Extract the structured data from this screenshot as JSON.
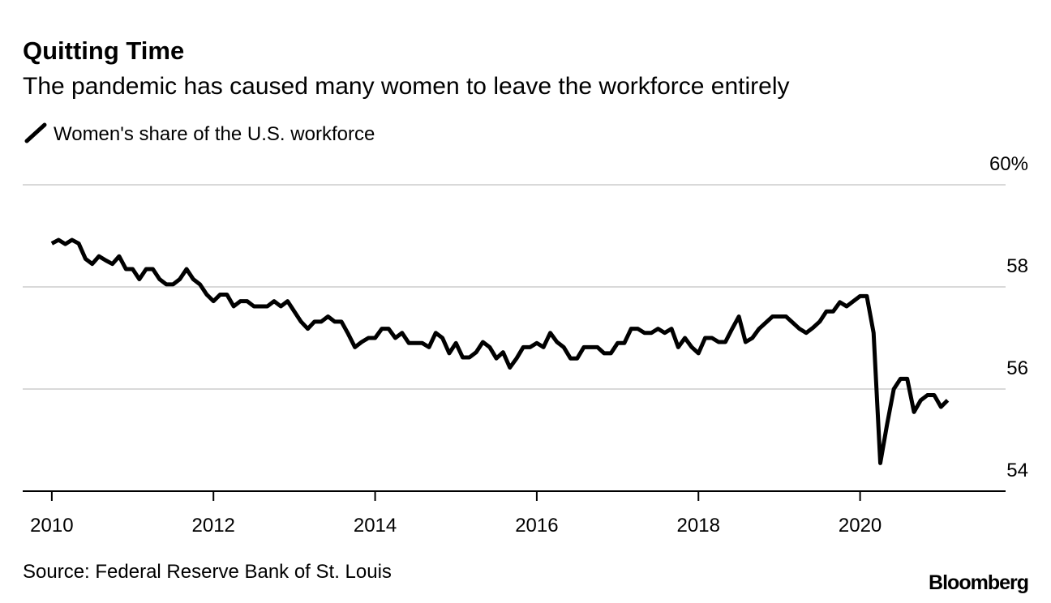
{
  "chart_data": {
    "type": "line",
    "title": "Quitting Time",
    "subtitle": "The pandemic has caused many women to leave the workforce entirely",
    "source": "Source: Federal Reserve Bank of St. Louis",
    "brand": "Bloomberg",
    "x": [
      2010,
      2010.083,
      2010.167,
      2010.25,
      2010.333,
      2010.417,
      2010.5,
      2010.583,
      2010.667,
      2010.75,
      2010.833,
      2010.917,
      2011,
      2011.083,
      2011.167,
      2011.25,
      2011.333,
      2011.417,
      2011.5,
      2011.583,
      2011.667,
      2011.75,
      2011.833,
      2011.917,
      2012,
      2012.083,
      2012.167,
      2012.25,
      2012.333,
      2012.417,
      2012.5,
      2012.583,
      2012.667,
      2012.75,
      2012.833,
      2012.917,
      2013,
      2013.083,
      2013.167,
      2013.25,
      2013.333,
      2013.417,
      2013.5,
      2013.583,
      2013.667,
      2013.75,
      2013.833,
      2013.917,
      2014,
      2014.083,
      2014.167,
      2014.25,
      2014.333,
      2014.417,
      2014.5,
      2014.583,
      2014.667,
      2014.75,
      2014.833,
      2014.917,
      2015,
      2015.083,
      2015.167,
      2015.25,
      2015.333,
      2015.417,
      2015.5,
      2015.583,
      2015.667,
      2015.75,
      2015.833,
      2015.917,
      2016,
      2016.083,
      2016.167,
      2016.25,
      2016.333,
      2016.417,
      2016.5,
      2016.583,
      2016.667,
      2016.75,
      2016.833,
      2016.917,
      2017,
      2017.083,
      2017.167,
      2017.25,
      2017.333,
      2017.417,
      2017.5,
      2017.583,
      2017.667,
      2017.75,
      2017.833,
      2017.917,
      2018,
      2018.083,
      2018.167,
      2018.25,
      2018.333,
      2018.417,
      2018.5,
      2018.583,
      2018.667,
      2018.75,
      2018.833,
      2018.917,
      2019,
      2019.083,
      2019.167,
      2019.25,
      2019.333,
      2019.417,
      2019.5,
      2019.583,
      2019.667,
      2019.75,
      2019.833,
      2019.917,
      2020,
      2020.083,
      2020.167,
      2020.25,
      2020.333,
      2020.417,
      2020.5,
      2020.583,
      2020.667,
      2020.75,
      2020.833,
      2020.917,
      2021,
      2021.083
    ],
    "series": [
      {
        "name": "Women's share of the U.S. workforce",
        "color": "#000000",
        "values": [
          58.85,
          58.92,
          58.84,
          58.92,
          58.85,
          58.55,
          58.45,
          58.6,
          58.52,
          58.45,
          58.6,
          58.35,
          58.35,
          58.15,
          58.35,
          58.35,
          58.15,
          58.05,
          58.05,
          58.15,
          58.35,
          58.15,
          58.05,
          57.85,
          57.72,
          57.85,
          57.85,
          57.62,
          57.72,
          57.72,
          57.62,
          57.62,
          57.62,
          57.72,
          57.62,
          57.72,
          57.52,
          57.32,
          57.18,
          57.32,
          57.32,
          57.42,
          57.32,
          57.32,
          57.08,
          56.82,
          56.92,
          57.0,
          57.0,
          57.18,
          57.18,
          57.0,
          57.1,
          56.9,
          56.9,
          56.9,
          56.82,
          57.1,
          57.0,
          56.7,
          56.9,
          56.62,
          56.62,
          56.72,
          56.92,
          56.82,
          56.6,
          56.72,
          56.42,
          56.6,
          56.82,
          56.82,
          56.9,
          56.82,
          57.1,
          56.92,
          56.82,
          56.6,
          56.6,
          56.82,
          56.82,
          56.82,
          56.7,
          56.7,
          56.9,
          56.9,
          57.18,
          57.18,
          57.1,
          57.1,
          57.18,
          57.1,
          57.18,
          56.82,
          57.0,
          56.82,
          56.7,
          57.0,
          57.0,
          56.92,
          56.92,
          57.18,
          57.42,
          56.92,
          57.0,
          57.18,
          57.3,
          57.42,
          57.42,
          57.42,
          57.3,
          57.18,
          57.1,
          57.2,
          57.32,
          57.52,
          57.52,
          57.7,
          57.62,
          57.72,
          57.82,
          57.82,
          57.1,
          54.55,
          55.3,
          56.0,
          56.2,
          56.2,
          55.55,
          55.78,
          55.88,
          55.88,
          55.65,
          55.78
        ]
      }
    ],
    "xlim": [
      2009.64,
      2021.8
    ],
    "xticks": [
      2010,
      2012,
      2014,
      2016,
      2018,
      2020
    ],
    "ylim": [
      54,
      60
    ],
    "yticks": [
      54,
      56,
      58,
      {
        "value": 60,
        "label": "60%"
      }
    ],
    "grid": true
  }
}
